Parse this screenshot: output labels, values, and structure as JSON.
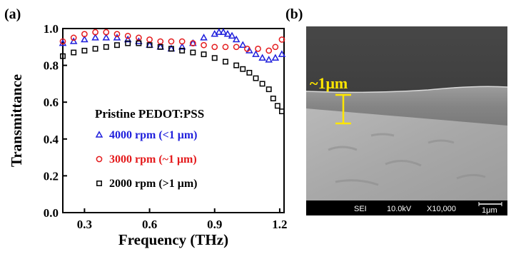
{
  "panel_a": {
    "label": "(a)"
  },
  "panel_b": {
    "label": "(b)",
    "annotation": "~1μm",
    "annotation_color": "#ffe600",
    "info_bar": {
      "detector": "SEI",
      "voltage": "10.0kV",
      "magnification": "X10,000",
      "scale": "1μm"
    }
  },
  "chart_data": {
    "type": "scatter",
    "xlabel": "Frequency (THz)",
    "ylabel": "Transmittance",
    "xlim": [
      0.2,
      1.22
    ],
    "ylim": [
      0.0,
      1.0
    ],
    "xticks": [
      0.3,
      0.6,
      0.9,
      1.2
    ],
    "xtick_labels": [
      "0.3",
      "0.6",
      "0.9",
      "1.2"
    ],
    "yticks": [
      0.0,
      0.2,
      0.4,
      0.6,
      0.8,
      1.0
    ],
    "ytick_labels": [
      "0.0",
      "0.2",
      "0.4",
      "0.6",
      "0.8",
      "1.0"
    ],
    "legend_title": "Pristine PEDOT:PSS",
    "legend_position": "center-left",
    "series": [
      {
        "name": "4000 rpm (<1 μm)",
        "marker": "triangle",
        "color": "#1f1fdc",
        "x": [
          0.2,
          0.25,
          0.3,
          0.35,
          0.4,
          0.45,
          0.5,
          0.55,
          0.6,
          0.65,
          0.7,
          0.75,
          0.8,
          0.85,
          0.9,
          0.92,
          0.94,
          0.96,
          0.98,
          1.0,
          1.03,
          1.06,
          1.09,
          1.12,
          1.15,
          1.18,
          1.21
        ],
        "y": [
          0.92,
          0.93,
          0.94,
          0.95,
          0.95,
          0.95,
          0.94,
          0.93,
          0.91,
          0.9,
          0.89,
          0.9,
          0.92,
          0.95,
          0.97,
          0.98,
          0.98,
          0.97,
          0.96,
          0.94,
          0.91,
          0.88,
          0.86,
          0.84,
          0.83,
          0.84,
          0.86
        ]
      },
      {
        "name": "3000 rpm (~1 μm)",
        "marker": "circle",
        "color": "#e41a1c",
        "x": [
          0.2,
          0.25,
          0.3,
          0.35,
          0.4,
          0.45,
          0.5,
          0.55,
          0.6,
          0.65,
          0.7,
          0.75,
          0.8,
          0.85,
          0.9,
          0.95,
          1.0,
          1.05,
          1.1,
          1.15,
          1.18,
          1.21
        ],
        "y": [
          0.93,
          0.95,
          0.97,
          0.98,
          0.98,
          0.97,
          0.96,
          0.95,
          0.94,
          0.93,
          0.93,
          0.93,
          0.92,
          0.91,
          0.9,
          0.9,
          0.9,
          0.89,
          0.89,
          0.88,
          0.9,
          0.94
        ]
      },
      {
        "name": "2000 rpm (>1 μm)",
        "marker": "square",
        "color": "#000000",
        "x": [
          0.2,
          0.25,
          0.3,
          0.35,
          0.4,
          0.45,
          0.5,
          0.55,
          0.6,
          0.65,
          0.7,
          0.75,
          0.8,
          0.85,
          0.9,
          0.95,
          1.0,
          1.03,
          1.06,
          1.09,
          1.12,
          1.15,
          1.17,
          1.19,
          1.21
        ],
        "y": [
          0.85,
          0.87,
          0.88,
          0.89,
          0.9,
          0.91,
          0.92,
          0.92,
          0.91,
          0.9,
          0.89,
          0.88,
          0.87,
          0.86,
          0.84,
          0.82,
          0.8,
          0.78,
          0.76,
          0.73,
          0.7,
          0.67,
          0.62,
          0.58,
          0.55
        ]
      }
    ]
  }
}
